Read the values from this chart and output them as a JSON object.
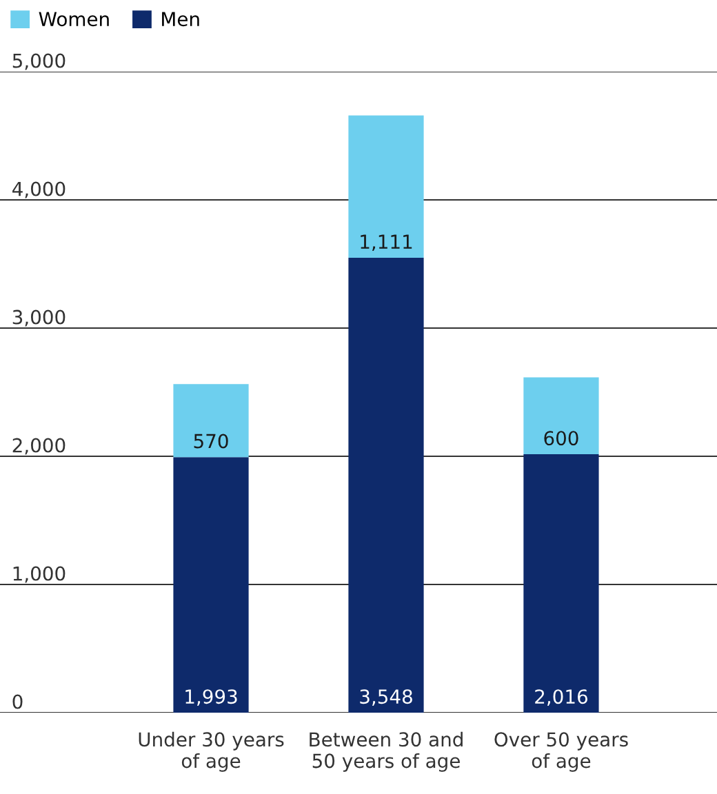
{
  "chart_data": {
    "type": "bar",
    "stacked": true,
    "categories": [
      "Under 30 years\nof age",
      "Between 30 and\n50 years of age",
      "Over 50 years\nof age"
    ],
    "series": [
      {
        "name": "Men",
        "color": "#0e2a6b",
        "values": [
          1993,
          3548,
          2016
        ],
        "value_labels": [
          "1,993",
          "3,548",
          "2,016"
        ]
      },
      {
        "name": "Women",
        "color": "#6dcfee",
        "values": [
          570,
          1111,
          600
        ],
        "value_labels": [
          "570",
          "1,111",
          "600"
        ]
      }
    ],
    "ylim": [
      0,
      5000
    ],
    "yticks": [
      {
        "value": 0,
        "label": "0"
      },
      {
        "value": 1000,
        "label": "1,000"
      },
      {
        "value": 2000,
        "label": "2,000"
      },
      {
        "value": 3000,
        "label": "3,000"
      },
      {
        "value": 4000,
        "label": "4,000"
      },
      {
        "value": 5000,
        "label": "5,000"
      }
    ],
    "grid": "y",
    "legend": "top left"
  }
}
